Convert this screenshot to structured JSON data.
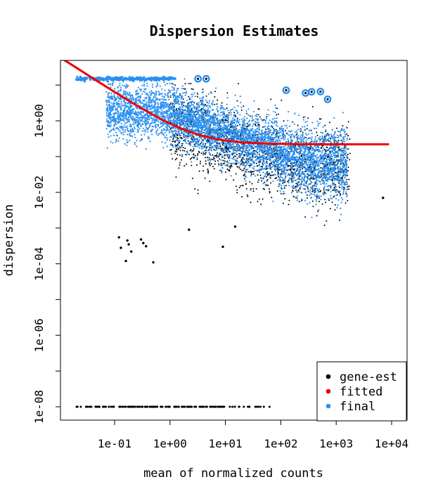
{
  "chart_data": {
    "type": "scatter",
    "title": "Dispersion Estimates",
    "xlabel": "mean of normalized counts",
    "ylabel": "dispersion",
    "x_scale": "log10",
    "y_scale": "log10",
    "xlim": [
      0.01,
      15000
    ],
    "ylim": [
      5e-09,
      30.0
    ],
    "x_ticks": [
      {
        "value": 0.1,
        "label": "1e-01"
      },
      {
        "value": 1,
        "label": "1e+00"
      },
      {
        "value": 10,
        "label": "1e+01"
      },
      {
        "value": 100,
        "label": "1e+02"
      },
      {
        "value": 1000,
        "label": "1e+03"
      },
      {
        "value": 10000,
        "label": "1e+04"
      }
    ],
    "y_ticks": [
      {
        "value": 1e-08,
        "label": "1e-08"
      },
      {
        "value": 1e-06,
        "label": "1e-06"
      },
      {
        "value": 0.0001,
        "label": "1e-04"
      },
      {
        "value": 0.01,
        "label": "1e-02"
      },
      {
        "value": 1,
        "label": "1e+00"
      }
    ],
    "y_minor_ticks": [
      1e-07,
      1e-05,
      0.001,
      0.1,
      10
    ],
    "legend": {
      "position": "bottom-right",
      "entries": [
        {
          "label": "gene-est",
          "color": "#000000"
        },
        {
          "label": "fitted",
          "color": "#ee0000"
        },
        {
          "label": "final",
          "color": "#2a90f0"
        }
      ]
    },
    "fitted_trend": {
      "name": "fitted",
      "asymptotic_dispersion": 0.22,
      "extra_dispersion_numerator": 0.62,
      "x_range": [
        0.01,
        9000
      ]
    },
    "point_clouds": [
      {
        "name": "final",
        "kind": "main_cloud",
        "x_range": [
          0.03,
          12000
        ],
        "description_values": "dense band, 1e-01 to 1e+04"
      },
      {
        "name": "final",
        "kind": "ceiling",
        "x_range": [
          0.02,
          1.2
        ],
        "y": 15
      },
      {
        "name": "gene-est",
        "kind": "main_cloud",
        "x_range": [
          0.8,
          3000
        ]
      },
      {
        "name": "gene-est",
        "kind": "floor",
        "x_range": [
          0.02,
          60
        ],
        "y": 1e-08
      }
    ],
    "outliers_gene_est": [
      {
        "x": 0.12,
        "y": 0.00055
      },
      {
        "x": 0.13,
        "y": 0.00028
      },
      {
        "x": 0.17,
        "y": 0.00045
      },
      {
        "x": 0.18,
        "y": 0.00035
      },
      {
        "x": 0.2,
        "y": 0.00022
      },
      {
        "x": 0.16,
        "y": 0.00012
      },
      {
        "x": 0.3,
        "y": 0.00048
      },
      {
        "x": 0.33,
        "y": 0.00038
      },
      {
        "x": 0.37,
        "y": 0.00031
      },
      {
        "x": 0.5,
        "y": 0.00011
      },
      {
        "x": 2.2,
        "y": 0.0009
      },
      {
        "x": 9,
        "y": 0.0003
      },
      {
        "x": 15,
        "y": 0.0011
      },
      {
        "x": 7000,
        "y": 0.007
      }
    ],
    "outliers_final_circled": [
      {
        "x": 3.2,
        "y": 15
      },
      {
        "x": 4.5,
        "y": 15
      },
      {
        "x": 125,
        "y": 7.2
      },
      {
        "x": 280,
        "y": 6
      },
      {
        "x": 360,
        "y": 6.5
      },
      {
        "x": 520,
        "y": 6.6
      },
      {
        "x": 700,
        "y": 4
      }
    ],
    "colors": {
      "gene_est": "#000000",
      "fitted": "#ee0000",
      "final": "#2a90f0"
    }
  }
}
